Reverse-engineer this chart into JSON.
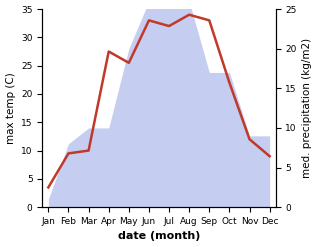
{
  "months": [
    "Jan",
    "Feb",
    "Mar",
    "Apr",
    "May",
    "Jun",
    "Jul",
    "Aug",
    "Sep",
    "Oct",
    "Nov",
    "Dec"
  ],
  "temperature": [
    3.5,
    9.5,
    10.0,
    27.5,
    25.5,
    33.0,
    32.0,
    34.0,
    33.0,
    22.0,
    12.0,
    9.0
  ],
  "precipitation": [
    1.0,
    8.0,
    10.0,
    10.0,
    20.0,
    26.0,
    27.0,
    26.0,
    17.0,
    17.0,
    9.0,
    9.0
  ],
  "temp_color": "#c0392b",
  "precip_fill_color": "#c5cef0",
  "temp_ylim": [
    0,
    35
  ],
  "precip_ylim": [
    0,
    25
  ],
  "temp_yticks": [
    0,
    5,
    10,
    15,
    20,
    25,
    30,
    35
  ],
  "precip_yticks": [
    0,
    5,
    10,
    15,
    20,
    25
  ],
  "xlabel": "date (month)",
  "ylabel_left": "max temp (C)",
  "ylabel_right": "med. precipitation (kg/m2)",
  "background_color": "#ffffff",
  "label_fontsize": 7.5,
  "tick_fontsize": 6.5,
  "xlabel_fontsize": 8,
  "linewidth": 1.8
}
